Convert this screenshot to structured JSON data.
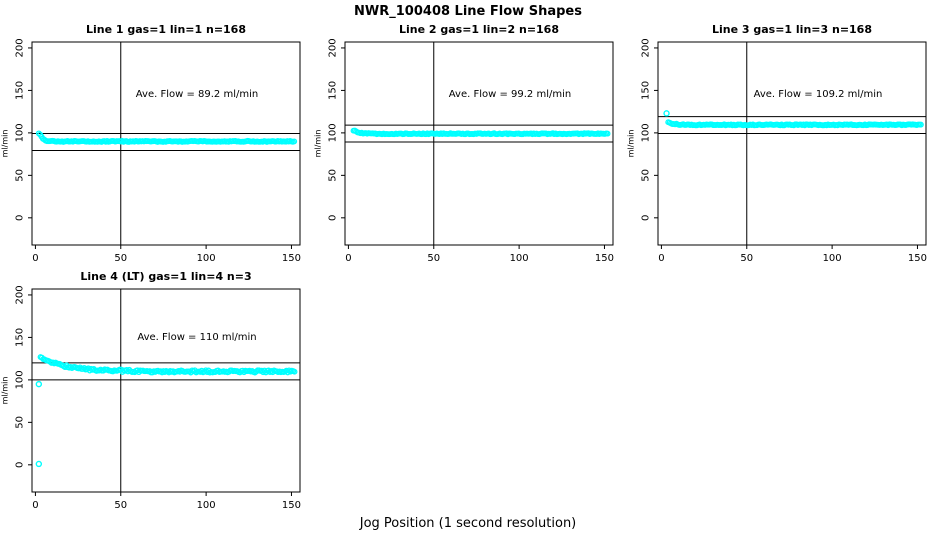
{
  "page": {
    "title": "NWR_100408  Line Flow Shapes",
    "xlabel": "Jog Position (1 second resolution)"
  },
  "colors": {
    "marker": "#00ffff",
    "axis": "#000000",
    "background": "#ffffff"
  },
  "chart_data": [
    {
      "type": "scatter",
      "title": "Line 1 gas=1 lin=1 n=168",
      "annotation": "Ave. Flow =  89.2  ml/min",
      "ave_flow_ml_min": 89.2,
      "ylabel": "ml/min",
      "x_ticks": [
        0,
        50,
        100,
        150
      ],
      "y_ticks": [
        0,
        50,
        100,
        150,
        200
      ],
      "xlim": [
        -2,
        155
      ],
      "ylim": [
        -32,
        207
      ],
      "ref_lines_y": [
        99.2,
        79.2
      ],
      "vline_x": 50,
      "x_range": [
        2,
        152
      ],
      "anchors": [
        [
          2,
          100
        ],
        [
          3,
          97
        ],
        [
          4,
          94
        ],
        [
          5,
          92
        ],
        [
          6,
          91
        ],
        [
          8,
          90.5
        ],
        [
          12,
          90
        ],
        [
          152,
          90
        ]
      ],
      "isolated_points": [],
      "jitter": 0.6
    },
    {
      "type": "scatter",
      "title": "Line 2 gas=1 lin=2 n=168",
      "annotation": "Ave. Flow =  99.2  ml/min",
      "ave_flow_ml_min": 99.2,
      "ylabel": "ml/min",
      "x_ticks": [
        0,
        50,
        100,
        150
      ],
      "y_ticks": [
        0,
        50,
        100,
        150,
        200
      ],
      "xlim": [
        -2,
        155
      ],
      "ylim": [
        -32,
        207
      ],
      "ref_lines_y": [
        109.2,
        89.2
      ],
      "vline_x": 50,
      "x_range": [
        3,
        152
      ],
      "anchors": [
        [
          3,
          103
        ],
        [
          4,
          102
        ],
        [
          5,
          101
        ],
        [
          7,
          100
        ],
        [
          10,
          99.5
        ],
        [
          15,
          99
        ],
        [
          152,
          99
        ]
      ],
      "isolated_points": [],
      "jitter": 0.6
    },
    {
      "type": "scatter",
      "title": "Line 3 gas=1 lin=3 n=168",
      "annotation": "Ave. Flow =  109.2  ml/min",
      "ave_flow_ml_min": 109.2,
      "ylabel": "ml/min",
      "x_ticks": [
        0,
        50,
        100,
        150
      ],
      "y_ticks": [
        0,
        50,
        100,
        150,
        200
      ],
      "xlim": [
        -2,
        155
      ],
      "ylim": [
        -32,
        207
      ],
      "ref_lines_y": [
        119.2,
        99.2
      ],
      "vline_x": 50,
      "x_range": [
        4,
        152
      ],
      "anchors": [
        [
          4,
          113
        ],
        [
          5,
          112
        ],
        [
          7,
          110.5
        ],
        [
          10,
          110
        ],
        [
          15,
          109.5
        ],
        [
          152,
          109.5
        ]
      ],
      "isolated_points": [
        [
          3,
          123
        ]
      ],
      "jitter": 0.6
    },
    {
      "type": "scatter",
      "title": "Line 4 (LT) gas=1 lin=4 n=3",
      "annotation": "Ave. Flow =  110  ml/min",
      "ave_flow_ml_min": 110,
      "ylabel": "ml/min",
      "x_ticks": [
        0,
        50,
        100,
        150
      ],
      "y_ticks": [
        0,
        50,
        100,
        150,
        200
      ],
      "xlim": [
        -2,
        155
      ],
      "ylim": [
        -32,
        207
      ],
      "ref_lines_y": [
        120,
        100
      ],
      "vline_x": 50,
      "x_range": [
        3,
        152
      ],
      "anchors": [
        [
          3,
          126
        ],
        [
          4,
          126
        ],
        [
          6,
          124
        ],
        [
          8,
          122.5
        ],
        [
          12,
          119
        ],
        [
          16,
          117
        ],
        [
          22,
          114.5
        ],
        [
          30,
          112.5
        ],
        [
          40,
          111.5
        ],
        [
          55,
          110.5
        ],
        [
          70,
          110
        ],
        [
          90,
          110
        ],
        [
          110,
          109.8
        ],
        [
          130,
          110
        ],
        [
          152,
          110
        ]
      ],
      "isolated_points": [
        [
          2,
          95
        ],
        [
          2,
          1
        ]
      ],
      "jitter": 1.4
    }
  ]
}
